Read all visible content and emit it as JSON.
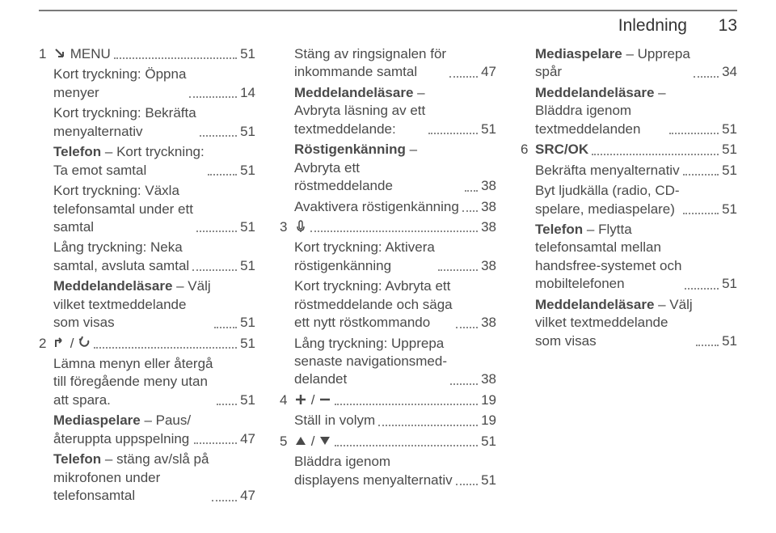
{
  "header": {
    "section_title": "Inledning",
    "page_number": "13"
  },
  "columns": [
    {
      "entries": [
        {
          "num": "1",
          "icons": [
            "arrow-back-icon"
          ],
          "sep": " / ",
          "text": "MENU",
          "page": "51"
        },
        {
          "text": "Kort tryckning: Öppna\nmenyer",
          "page": "14"
        },
        {
          "text": "Kort tryckning: Bekräfta\nmenyalternativ",
          "page": "51"
        },
        {
          "bold_prefix": "Telefon",
          "text": " – Kort tryckning:\nTa emot samtal",
          "page": "51"
        },
        {
          "text": "Kort tryckning: Växla\ntelefonsamtal under ett\nsamtal",
          "page": "51"
        },
        {
          "text": "Lång tryckning: Neka\nsamtal, avsluta samtal",
          "page": "51"
        },
        {
          "bold_prefix": "Meddelandeläsare",
          "text": " – Välj\nvilket textmeddelande\nsom visas",
          "page": "51"
        },
        {
          "num": "2",
          "icons": [
            "escape-icon",
            "undo-icon"
          ],
          "sep": " / ",
          "page": "51"
        },
        {
          "text": "Lämna menyn eller återgå\ntill föregående meny utan\natt spara.",
          "page": "51"
        },
        {
          "bold_prefix": "Mediaspelare",
          "text": " – Paus/\nåteruppta uppspelning",
          "page": "47"
        },
        {
          "bold_prefix": "Telefon",
          "text": " – stäng av/slå på\nmikrofonen under\ntelefonsamtal",
          "page": "47"
        }
      ]
    },
    {
      "entries": [
        {
          "text": "Stäng av ringsignalen för\ninkommande samtal",
          "page": "47"
        },
        {
          "bold_prefix": "Meddelandeläsare",
          "text": " –\nAvbryta läsning av ett\ntextmeddelande:",
          "page": "51"
        },
        {
          "bold_prefix": "Röstigenkänning",
          "text": " –\nAvbryta ett röstmeddelande",
          "page": "38",
          "short_dots": true
        },
        {
          "text": "Avaktivera röstigenkänning",
          "page": "38"
        },
        {
          "num": "3",
          "icons": [
            "voice-icon"
          ],
          "page": "38"
        },
        {
          "text": "Kort tryckning: Aktivera\nröstigenkänning",
          "page": "38"
        },
        {
          "text": "Kort tryckning: Avbryta ett\nröstmeddelande och säga\nett nytt röstkommando",
          "page": "38"
        },
        {
          "text": "Lång tryckning: Upprepa\nsenaste navigationsmed-\ndelandet",
          "page": "38"
        },
        {
          "num": "4",
          "icons": [
            "plus-icon",
            "minus-icon"
          ],
          "sep": " / ",
          "page": "19"
        },
        {
          "text": "Ställ in volym",
          "page": "19"
        },
        {
          "num": "5",
          "icons": [
            "triangle-up-icon",
            "triangle-down-icon"
          ],
          "sep": " / ",
          "page": "51"
        },
        {
          "text": "Bläddra igenom\ndisplayens menyalternativ",
          "page": "51"
        }
      ]
    },
    {
      "entries": [
        {
          "bold_prefix": "Mediaspelare",
          "text": " – Upprepa\nspår",
          "page": "34"
        },
        {
          "bold_prefix": "Meddelandeläsare",
          "text": " –\nBläddra igenom\ntextmeddelanden",
          "page": "51"
        },
        {
          "num": "6",
          "bold_prefix": "SRC/OK",
          "page": "51"
        },
        {
          "text": "Bekräfta menyalternativ",
          "page": "51"
        },
        {
          "text": "Byt ljudkälla (radio, CD-\nspelare, mediaspelare)",
          "page": "51"
        },
        {
          "bold_prefix": "Telefon",
          "text": " – Flytta\ntelefonsamtal mellan\nhandsfree-systemet och\nmobiltelefonen",
          "page": "51"
        },
        {
          "bold_prefix": "Meddelandeläsare",
          "text": " – Välj\nvilket textmeddelande\nsom visas",
          "page": "51"
        }
      ]
    }
  ],
  "icons": {
    "arrow-back-icon": "↘",
    "escape-icon": "⤴",
    "undo-icon": "↩",
    "voice-icon": "🎤",
    "plus-icon": "＋",
    "minus-icon": "−",
    "triangle-up-icon": "▲",
    "triangle-down-icon": "▼"
  }
}
